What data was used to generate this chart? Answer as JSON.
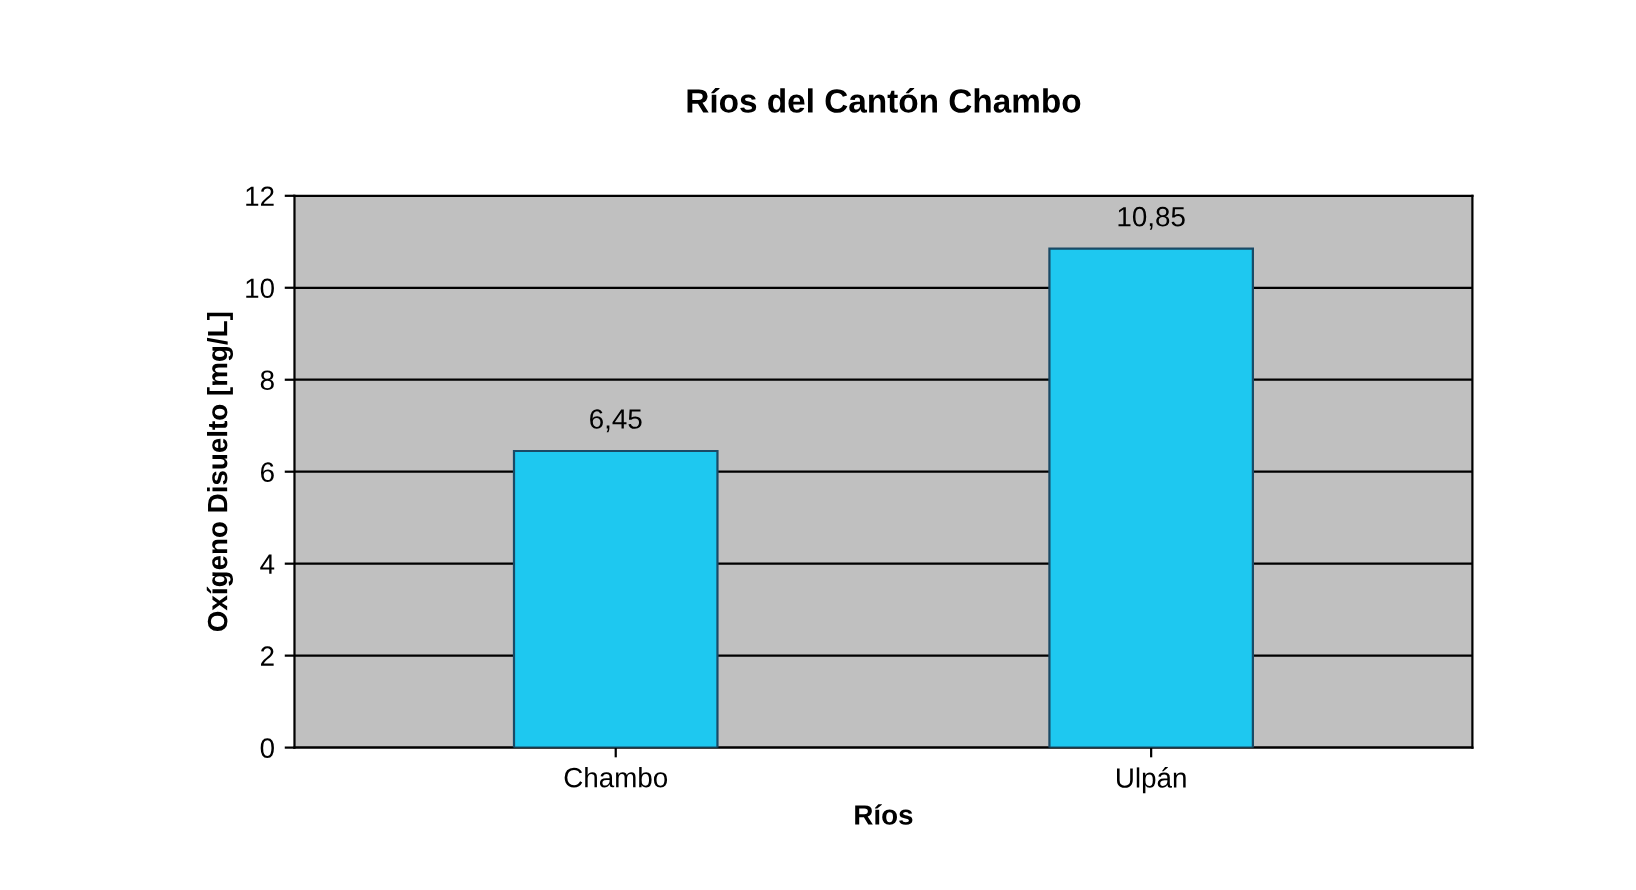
{
  "chart_data": {
    "type": "bar",
    "title": "Ríos del Cantón Chambo",
    "xlabel": "Ríos",
    "ylabel": "Oxígeno Disuelto [mg/L]",
    "categories": [
      "Chambo",
      "Ulpán"
    ],
    "values": [
      6.45,
      10.85
    ],
    "color": "#1ec8f0",
    "value_labels": [
      "6,45",
      "10,85"
    ],
    "ylim": [
      0,
      12
    ],
    "yticks": [
      0,
      2,
      4,
      6,
      8,
      10,
      12
    ],
    "grid": "y",
    "legend": false
  }
}
